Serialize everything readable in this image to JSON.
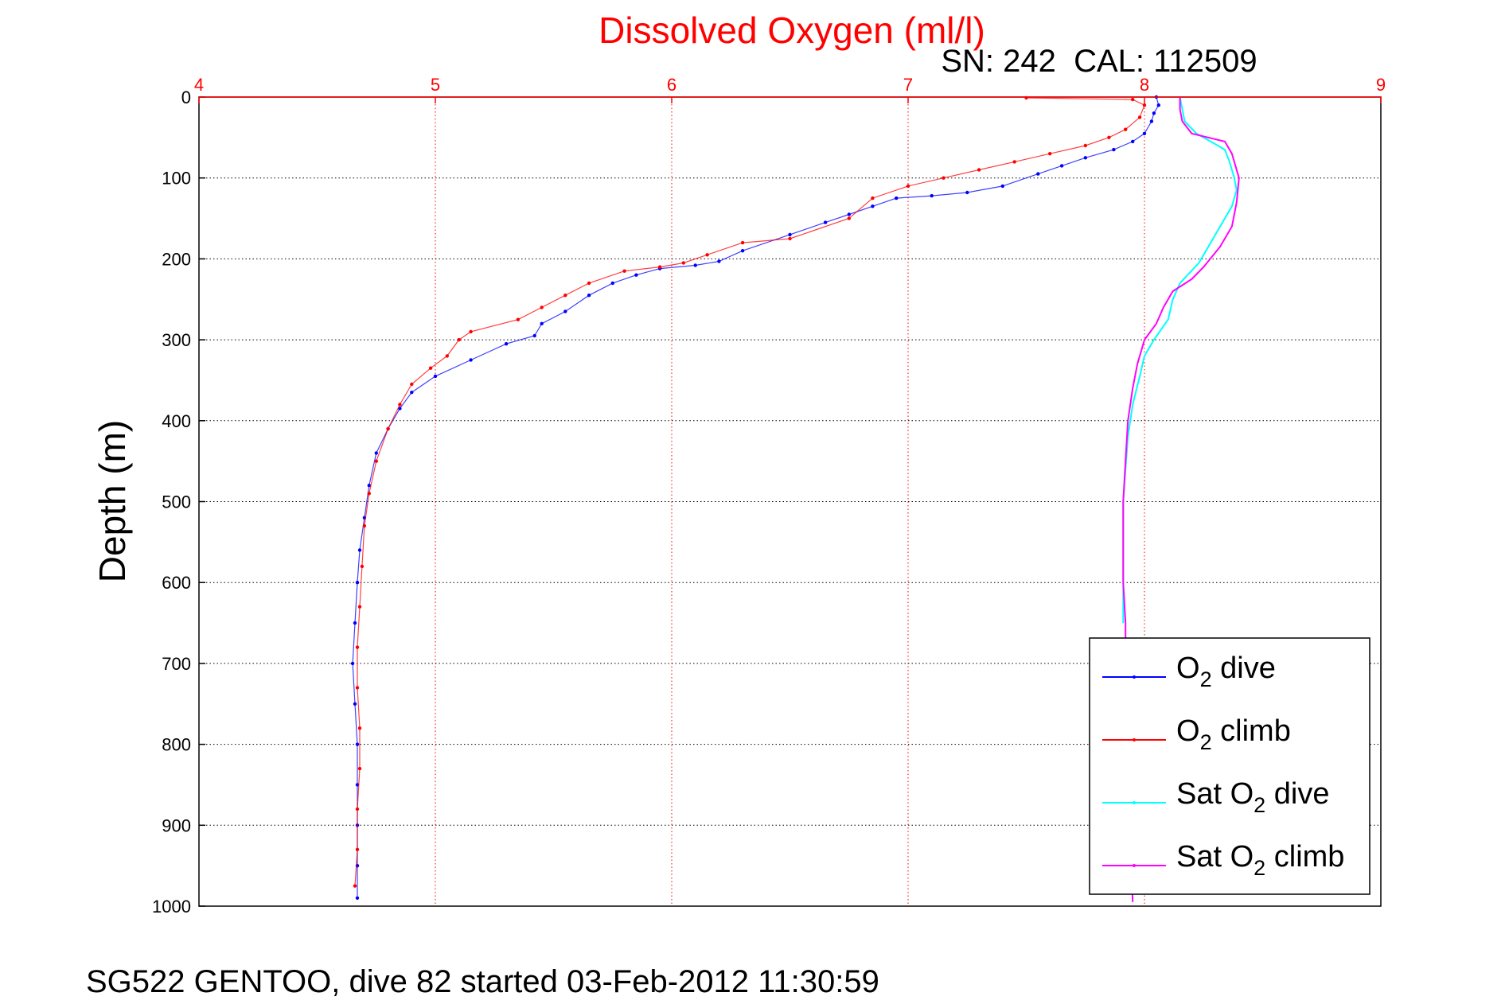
{
  "chart_data": {
    "type": "line",
    "title": "Dissolved Oxygen (ml/l)",
    "subtitle": "SN: 242  CAL: 112509",
    "xlabel": "",
    "ylabel": "Depth (m)",
    "xlim": [
      4,
      9
    ],
    "ylim": [
      0,
      1000
    ],
    "y_reversed": true,
    "x_axis_position": "top",
    "xticks": [
      4,
      5,
      6,
      7,
      8,
      9
    ],
    "yticks": [
      0,
      100,
      200,
      300,
      400,
      500,
      600,
      700,
      800,
      900,
      1000
    ],
    "grid": true,
    "legend_position": "bottom-right",
    "legend": [
      {
        "main": "O",
        "sub": "2",
        "rest": " dive",
        "color": "#0000ff"
      },
      {
        "main": "O",
        "sub": "2",
        "rest": " climb",
        "color": "#ff0000"
      },
      {
        "main": "Sat O",
        "sub": "2",
        "rest": " dive",
        "color": "#00ffff"
      },
      {
        "main": "Sat O",
        "sub": "2",
        "rest": " climb",
        "color": "#ff00ff"
      }
    ],
    "series": [
      {
        "name": "O2 dive",
        "color": "#0000ff",
        "style": "dots",
        "points": [
          [
            8.05,
            0
          ],
          [
            8.06,
            10
          ],
          [
            8.04,
            20
          ],
          [
            8.03,
            30
          ],
          [
            8.0,
            45
          ],
          [
            7.95,
            55
          ],
          [
            7.87,
            65
          ],
          [
            7.75,
            75
          ],
          [
            7.65,
            85
          ],
          [
            7.55,
            95
          ],
          [
            7.4,
            110
          ],
          [
            7.25,
            118
          ],
          [
            7.1,
            122
          ],
          [
            6.95,
            125
          ],
          [
            6.85,
            135
          ],
          [
            6.75,
            145
          ],
          [
            6.65,
            155
          ],
          [
            6.5,
            170
          ],
          [
            6.3,
            190
          ],
          [
            6.2,
            203
          ],
          [
            6.1,
            208
          ],
          [
            5.95,
            212
          ],
          [
            5.85,
            220
          ],
          [
            5.75,
            230
          ],
          [
            5.65,
            245
          ],
          [
            5.55,
            265
          ],
          [
            5.45,
            280
          ],
          [
            5.42,
            295
          ],
          [
            5.3,
            305
          ],
          [
            5.15,
            325
          ],
          [
            5.0,
            345
          ],
          [
            4.9,
            365
          ],
          [
            4.85,
            385
          ],
          [
            4.8,
            410
          ],
          [
            4.75,
            440
          ],
          [
            4.72,
            480
          ],
          [
            4.7,
            520
          ],
          [
            4.68,
            560
          ],
          [
            4.67,
            600
          ],
          [
            4.66,
            650
          ],
          [
            4.65,
            700
          ],
          [
            4.66,
            750
          ],
          [
            4.67,
            800
          ],
          [
            4.67,
            850
          ],
          [
            4.67,
            900
          ],
          [
            4.67,
            950
          ],
          [
            4.67,
            990
          ]
        ]
      },
      {
        "name": "O2 climb",
        "color": "#ff0000",
        "style": "dots",
        "points": [
          [
            7.5,
            1
          ],
          [
            7.95,
            3
          ],
          [
            8.0,
            10
          ],
          [
            7.98,
            25
          ],
          [
            7.92,
            40
          ],
          [
            7.85,
            50
          ],
          [
            7.75,
            60
          ],
          [
            7.6,
            70
          ],
          [
            7.45,
            80
          ],
          [
            7.3,
            90
          ],
          [
            7.15,
            100
          ],
          [
            7.0,
            110
          ],
          [
            6.85,
            125
          ],
          [
            6.75,
            150
          ],
          [
            6.5,
            175
          ],
          [
            6.3,
            180
          ],
          [
            6.15,
            195
          ],
          [
            6.05,
            205
          ],
          [
            5.95,
            210
          ],
          [
            5.8,
            215
          ],
          [
            5.65,
            230
          ],
          [
            5.55,
            245
          ],
          [
            5.45,
            260
          ],
          [
            5.35,
            275
          ],
          [
            5.15,
            290
          ],
          [
            5.1,
            300
          ],
          [
            5.05,
            320
          ],
          [
            4.98,
            335
          ],
          [
            4.9,
            355
          ],
          [
            4.85,
            380
          ],
          [
            4.8,
            410
          ],
          [
            4.75,
            450
          ],
          [
            4.72,
            490
          ],
          [
            4.7,
            530
          ],
          [
            4.69,
            580
          ],
          [
            4.68,
            630
          ],
          [
            4.67,
            680
          ],
          [
            4.67,
            730
          ],
          [
            4.68,
            780
          ],
          [
            4.68,
            830
          ],
          [
            4.67,
            880
          ],
          [
            4.67,
            930
          ],
          [
            4.66,
            975
          ]
        ]
      },
      {
        "name": "Sat O2 dive",
        "color": "#00ffff",
        "style": "line",
        "points": [
          [
            8.15,
            0
          ],
          [
            8.16,
            15
          ],
          [
            8.17,
            30
          ],
          [
            8.22,
            45
          ],
          [
            8.28,
            55
          ],
          [
            8.34,
            65
          ],
          [
            8.36,
            80
          ],
          [
            8.38,
            100
          ],
          [
            8.39,
            115
          ],
          [
            8.37,
            135
          ],
          [
            8.33,
            155
          ],
          [
            8.28,
            180
          ],
          [
            8.23,
            205
          ],
          [
            8.15,
            230
          ],
          [
            8.12,
            250
          ],
          [
            8.1,
            275
          ],
          [
            8.04,
            300
          ],
          [
            8.0,
            320
          ],
          [
            7.98,
            345
          ],
          [
            7.95,
            380
          ],
          [
            7.93,
            420
          ],
          [
            7.92,
            460
          ],
          [
            7.91,
            500
          ],
          [
            7.91,
            550
          ],
          [
            7.91,
            600
          ],
          [
            7.91,
            650
          ]
        ]
      },
      {
        "name": "Sat O2 climb",
        "color": "#ff00ff",
        "style": "line",
        "points": [
          [
            8.15,
            0
          ],
          [
            8.15,
            15
          ],
          [
            8.16,
            30
          ],
          [
            8.2,
            45
          ],
          [
            8.34,
            55
          ],
          [
            8.37,
            70
          ],
          [
            8.39,
            90
          ],
          [
            8.4,
            100
          ],
          [
            8.39,
            130
          ],
          [
            8.37,
            160
          ],
          [
            8.32,
            185
          ],
          [
            8.25,
            210
          ],
          [
            8.2,
            225
          ],
          [
            8.12,
            240
          ],
          [
            8.08,
            260
          ],
          [
            8.05,
            280
          ],
          [
            8.0,
            300
          ],
          [
            7.97,
            330
          ],
          [
            7.95,
            360
          ],
          [
            7.93,
            400
          ],
          [
            7.92,
            450
          ],
          [
            7.91,
            500
          ],
          [
            7.91,
            550
          ],
          [
            7.91,
            600
          ],
          [
            7.92,
            650
          ],
          [
            7.92,
            700
          ],
          [
            7.93,
            800
          ],
          [
            7.94,
            900
          ],
          [
            7.95,
            995
          ]
        ]
      }
    ]
  },
  "footer": "SG522 GENTOO, dive 82 started 03-Feb-2012 11:30:59"
}
